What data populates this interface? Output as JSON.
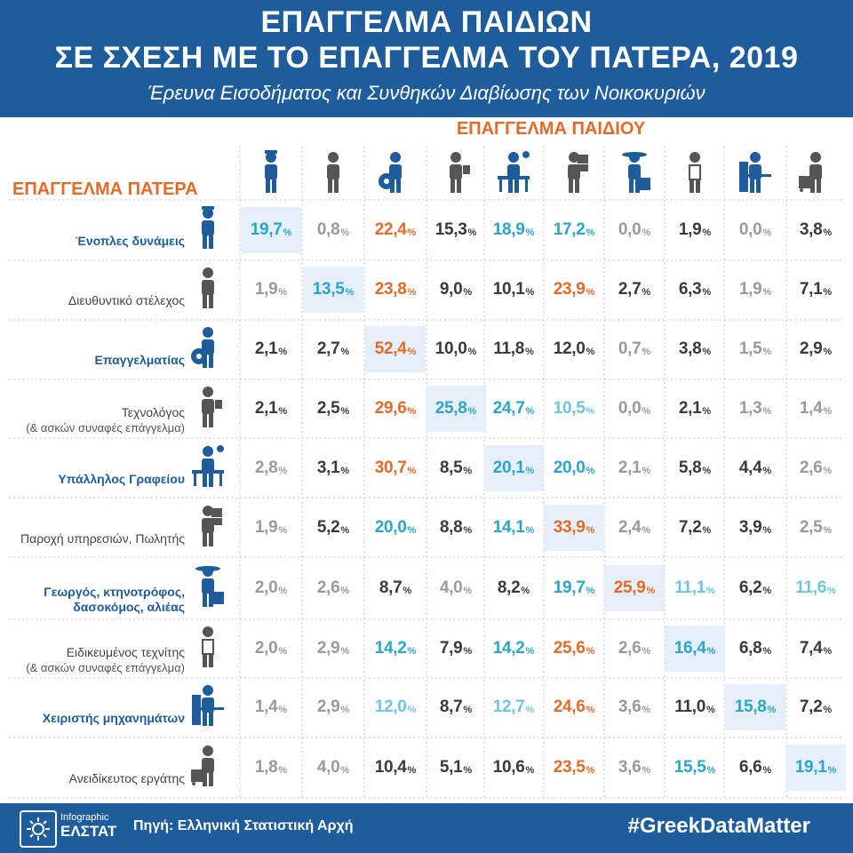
{
  "header": {
    "title_line1": "ΕΠΑΓΓΕΛΜΑ ΠΑΙΔΙΩΝ",
    "title_line2": "ΣΕ ΣΧΕΣΗ ΜΕ ΤΟ ΕΠΑΓΓΕΛΜΑ ΤΟΥ ΠΑΤΕΡΑ, 2019",
    "subtitle": "Έρευνα Εισοδήματος και Συνθηκών Διαβίωσης των Νοικοκυριών"
  },
  "axis": {
    "child_label": "ΕΠΑΓΓΕΛΜΑ ΠΑΙΔΙΟΥ",
    "father_label": "ΕΠΑΓΓΕΛΜΑ ΠΑΤΕΡΑ",
    "percent_sign": "%"
  },
  "icons": {
    "columns": [
      "soldier-icon",
      "manager-icon",
      "professional-icon",
      "technician-icon",
      "office-clerk-icon",
      "sales-worker-icon",
      "farmer-icon",
      "craftsman-icon",
      "machine-operator-icon",
      "laborer-icon"
    ],
    "rows": [
      "soldier-icon",
      "manager-icon",
      "professional-icon",
      "technician-icon",
      "office-clerk-icon",
      "sales-worker-icon",
      "farmer-icon",
      "craftsman-icon",
      "machine-operator-icon",
      "laborer-icon"
    ]
  },
  "colors": {
    "header_bg": "#1e5c9b",
    "accent_orange": "#e56a28",
    "accent_blue": "#2aa6c9",
    "dark": "#3a3a3a",
    "grey": "#9a9a9a",
    "light_blue": "#6ec6de",
    "diag_bg": "#e6eef9"
  },
  "chart_data": {
    "type": "table",
    "title": "ΕΠΑΓΓΕΛΜΑ ΠΑΙΔΙΩΝ ΣΕ ΣΧΕΣΗ ΜΕ ΤΟ ΕΠΑΓΓΕΛΜΑ ΤΟΥ ΠΑΤΕΡΑ, 2019",
    "subtitle": "Έρευνα Εισοδήματος και Συνθηκών Διαβίωσης των Νοικοκυριών",
    "xlabel": "ΕΠΑΓΓΕΛΜΑ ΠΑΙΔΙΟΥ",
    "ylabel": "ΕΠΑΓΓΕΛΜΑ ΠΑΤΕΡΑ",
    "unit": "%",
    "rows": [
      {
        "label": "Ένοπλες δυνάμεις",
        "sub": "",
        "emph": true,
        "values": [
          "19,7",
          "0,8",
          "22,4",
          "15,3",
          "18,9",
          "17,2",
          "0,0",
          "1,9",
          "0,0",
          "3,8"
        ],
        "tones": [
          "blue",
          "grey",
          "orange",
          "dark",
          "blue",
          "blue",
          "grey",
          "dark",
          "grey",
          "dark"
        ]
      },
      {
        "label": "Διευθυντικό στέλεχος",
        "sub": "",
        "emph": false,
        "values": [
          "1,9",
          "13,5",
          "23,8",
          "9,0",
          "10,1",
          "23,9",
          "2,7",
          "6,3",
          "1,9",
          "7,1"
        ],
        "tones": [
          "grey",
          "blue",
          "orange",
          "dark",
          "dark",
          "orange",
          "dark",
          "dark",
          "grey",
          "dark"
        ]
      },
      {
        "label": "Επαγγελματίας",
        "sub": "",
        "emph": true,
        "values": [
          "2,1",
          "2,7",
          "52,4",
          "10,0",
          "11,8",
          "12,0",
          "0,7",
          "3,8",
          "1,5",
          "2,9"
        ],
        "tones": [
          "dark",
          "dark",
          "orange",
          "dark",
          "dark",
          "dark",
          "grey",
          "dark",
          "grey",
          "dark"
        ]
      },
      {
        "label": "Τεχνολόγος",
        "sub": "(& ασκών συναφές επάγγελμα)",
        "emph": false,
        "values": [
          "2,1",
          "2,5",
          "29,6",
          "25,8",
          "24,7",
          "10,5",
          "0,0",
          "2,1",
          "1,3",
          "1,4"
        ],
        "tones": [
          "dark",
          "dark",
          "orange",
          "blue",
          "blue",
          "lblue",
          "grey",
          "dark",
          "grey",
          "grey"
        ]
      },
      {
        "label": "Υπάλληλος Γραφείου",
        "sub": "",
        "emph": true,
        "values": [
          "2,8",
          "3,1",
          "30,7",
          "8,5",
          "20,1",
          "20,0",
          "2,1",
          "5,8",
          "4,4",
          "2,6"
        ],
        "tones": [
          "grey",
          "dark",
          "orange",
          "dark",
          "blue",
          "blue",
          "grey",
          "dark",
          "dark",
          "grey"
        ]
      },
      {
        "label": "Παροχή υπηρεσιών, Πωλητής",
        "sub": "",
        "emph": false,
        "values": [
          "1,9",
          "5,2",
          "20,0",
          "8,8",
          "14,1",
          "33,9",
          "2,4",
          "7,2",
          "3,9",
          "2,5"
        ],
        "tones": [
          "grey",
          "dark",
          "blue",
          "dark",
          "blue",
          "orange",
          "grey",
          "dark",
          "dark",
          "grey"
        ]
      },
      {
        "label": "Γεωργός, κτηνοτρόφος,",
        "sub": "δασοκόμος, αλιέας",
        "emph": true,
        "values": [
          "2,0",
          "2,6",
          "8,7",
          "4,0",
          "8,2",
          "19,7",
          "25,9",
          "11,1",
          "6,2",
          "11,6"
        ],
        "tones": [
          "grey",
          "grey",
          "dark",
          "grey",
          "dark",
          "blue",
          "orange",
          "lblue",
          "dark",
          "lblue"
        ]
      },
      {
        "label": "Ειδικευμένος τεχνίτης",
        "sub": "(& ασκών συναφές επάγγελμα)",
        "emph": false,
        "values": [
          "2,0",
          "2,9",
          "14,2",
          "7,9",
          "14,2",
          "25,6",
          "2,6",
          "16,4",
          "6,8",
          "7,4"
        ],
        "tones": [
          "grey",
          "grey",
          "blue",
          "dark",
          "blue",
          "orange",
          "grey",
          "blue",
          "dark",
          "dark"
        ]
      },
      {
        "label": "Χειριστής μηχανημάτων",
        "sub": "",
        "emph": true,
        "values": [
          "1,4",
          "2,9",
          "12,0",
          "8,7",
          "12,7",
          "24,6",
          "3,6",
          "11,0",
          "15,8",
          "7,2"
        ],
        "tones": [
          "grey",
          "grey",
          "lblue",
          "dark",
          "lblue",
          "orange",
          "grey",
          "dark",
          "blue",
          "dark"
        ]
      },
      {
        "label": "Ανειδίκευτος εργάτης",
        "sub": "",
        "emph": false,
        "values": [
          "1,8",
          "4,0",
          "10,4",
          "5,1",
          "10,6",
          "23,5",
          "3,6",
          "15,5",
          "6,6",
          "19,1"
        ],
        "tones": [
          "grey",
          "grey",
          "dark",
          "dark",
          "dark",
          "orange",
          "grey",
          "blue",
          "dark",
          "blue"
        ]
      }
    ]
  },
  "footer": {
    "logo_small": "Infographic",
    "logo_big": "ΕΛΣΤΑΤ",
    "source": "Πηγή: Ελληνική Στατιστική Αρχή",
    "hashtag": "#GreekDataMatter"
  }
}
